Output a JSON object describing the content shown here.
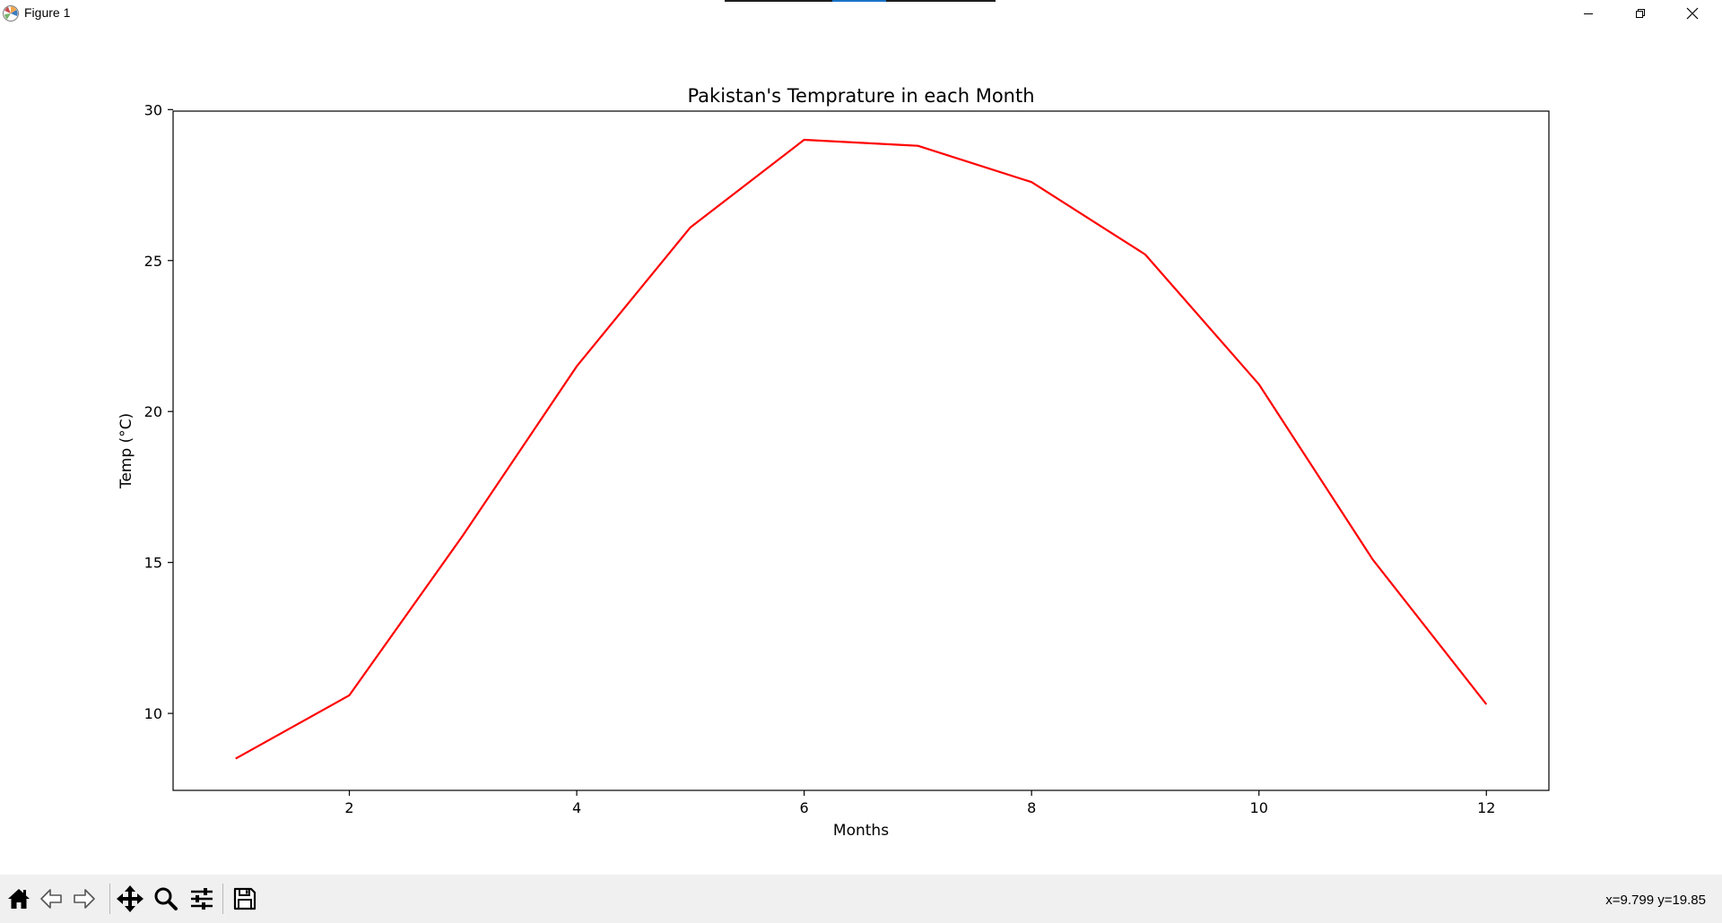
{
  "window": {
    "title": "Figure 1"
  },
  "toolbar": {
    "buttons": [
      {
        "name": "home",
        "icon": "home-icon"
      },
      {
        "name": "back",
        "icon": "arrow-left-icon"
      },
      {
        "name": "forward",
        "icon": "arrow-right-icon"
      },
      {
        "name": "pan",
        "icon": "move-icon"
      },
      {
        "name": "zoom",
        "icon": "magnifier-icon"
      },
      {
        "name": "configure-subplots",
        "icon": "sliders-icon"
      },
      {
        "name": "save",
        "icon": "floppy-icon"
      }
    ],
    "coordinates": "x=9.799 y=19.85"
  },
  "colors": {
    "line": "#ff0000",
    "axes": "#000000",
    "toolbar_bg": "#f0f0f0"
  },
  "chart_data": {
    "type": "line",
    "title": "Pakistan's Temprature in each Month",
    "xlabel": "Months",
    "ylabel": "Temp (°C)",
    "xlim": [
      0.45,
      12.55
    ],
    "ylim": [
      7.45,
      29.95
    ],
    "xticks": [
      2,
      4,
      6,
      8,
      10,
      12
    ],
    "yticks": [
      10,
      15,
      20,
      25,
      30
    ],
    "grid": false,
    "series": [
      {
        "x": [
          1,
          2,
          3,
          4,
          5,
          6,
          7,
          8,
          9,
          10,
          11,
          12
        ],
        "values": [
          8.5,
          10.6,
          15.9,
          21.5,
          26.1,
          29.0,
          28.8,
          27.6,
          25.2,
          20.9,
          15.1,
          10.3
        ],
        "color": "#ff0000"
      }
    ]
  }
}
